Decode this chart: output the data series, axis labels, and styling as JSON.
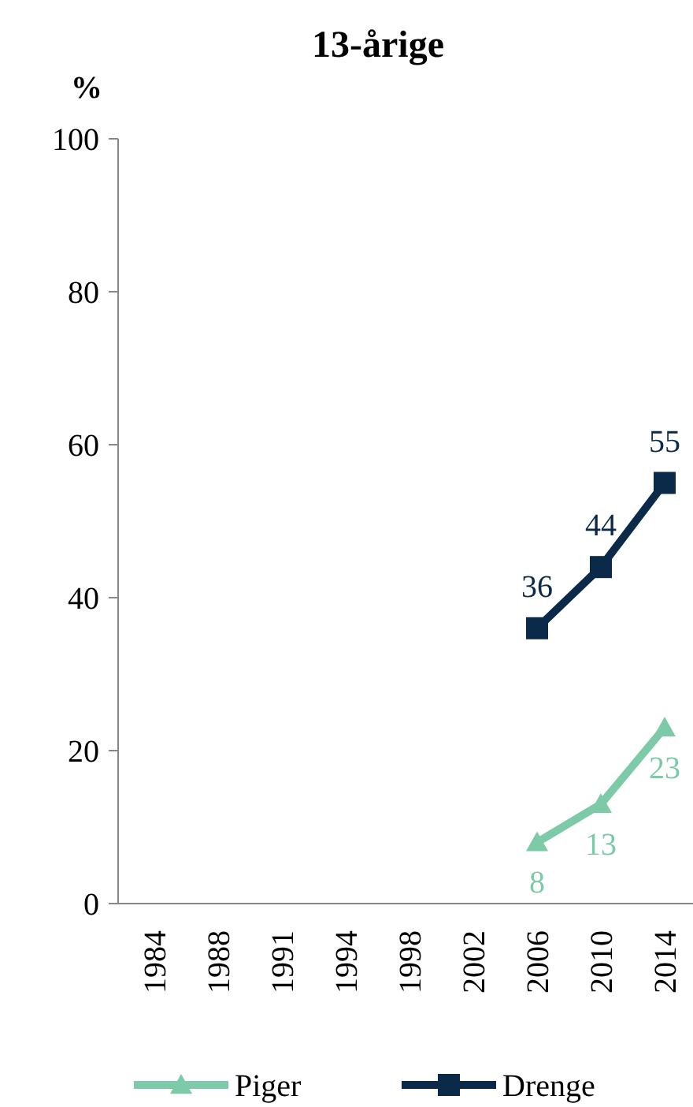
{
  "chart_data": {
    "type": "line",
    "title": "13-årige",
    "ylabel": "%",
    "categories": [
      "1984",
      "1988",
      "1991",
      "1994",
      "1998",
      "2002",
      "2006",
      "2010",
      "2014"
    ],
    "series": [
      {
        "name": "Piger",
        "color": "#7dcaa9",
        "marker": "triangle",
        "values": [
          null,
          null,
          null,
          null,
          null,
          null,
          8,
          13,
          23
        ]
      },
      {
        "name": "Drenge",
        "color": "#0b2a4a",
        "marker": "square",
        "values": [
          null,
          null,
          null,
          null,
          null,
          null,
          36,
          44,
          55
        ]
      }
    ],
    "ylim": [
      0,
      100
    ],
    "yticks": [
      0,
      20,
      40,
      60,
      80,
      100
    ],
    "grid": false,
    "legend": "bottom",
    "data_labels": true,
    "line_style": "solid"
  }
}
